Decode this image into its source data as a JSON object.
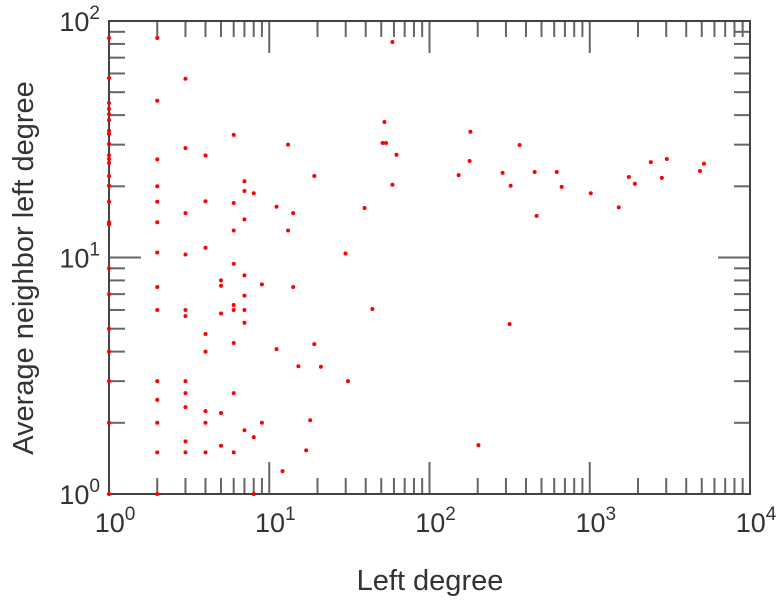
{
  "chart_data": {
    "type": "scatter",
    "title": "",
    "xlabel": "Left degree",
    "ylabel": "Average neighbor left degree",
    "xscale": "log",
    "yscale": "log",
    "xlim": [
      1,
      10000
    ],
    "ylim": [
      1,
      100
    ],
    "grid": false,
    "legend": "none",
    "point_color": "#ff0000",
    "x_ticks": [
      {
        "base": "10",
        "exp": "0",
        "value": 1
      },
      {
        "base": "10",
        "exp": "1",
        "value": 10
      },
      {
        "base": "10",
        "exp": "2",
        "value": 100
      },
      {
        "base": "10",
        "exp": "3",
        "value": 1000
      },
      {
        "base": "10",
        "exp": "4",
        "value": 10000
      }
    ],
    "y_ticks": [
      {
        "base": "10",
        "exp": "0",
        "value": 1
      },
      {
        "base": "10",
        "exp": "1",
        "value": 10
      },
      {
        "base": "10",
        "exp": "2",
        "value": 100
      }
    ],
    "points": [
      [
        1,
        84.7
      ],
      [
        1,
        57.4
      ],
      [
        1,
        45
      ],
      [
        1,
        42.5
      ],
      [
        1,
        40.4
      ],
      [
        1,
        38.1
      ],
      [
        1,
        34.3
      ],
      [
        1,
        33.3
      ],
      [
        1,
        30.2
      ],
      [
        1,
        27.1
      ],
      [
        1,
        26.1
      ],
      [
        1,
        25.1
      ],
      [
        1,
        22.1
      ],
      [
        1,
        20.1
      ],
      [
        1,
        17.2
      ],
      [
        1,
        14.1
      ],
      [
        1,
        13.8
      ],
      [
        1,
        9.0
      ],
      [
        1,
        7.0
      ],
      [
        1,
        5.0
      ],
      [
        1,
        4.0
      ],
      [
        1,
        3.0
      ],
      [
        1,
        2.0
      ],
      [
        1,
        1.0
      ],
      [
        2,
        84.7
      ],
      [
        2,
        46
      ],
      [
        2,
        26
      ],
      [
        2,
        20
      ],
      [
        2,
        17.2
      ],
      [
        2,
        14.1
      ],
      [
        2,
        10.5
      ],
      [
        2,
        7.5
      ],
      [
        2,
        6.0
      ],
      [
        2,
        3.0
      ],
      [
        2,
        2.5
      ],
      [
        2,
        2.0
      ],
      [
        2,
        1.5
      ],
      [
        2,
        1.0
      ],
      [
        3,
        57
      ],
      [
        3,
        29
      ],
      [
        3,
        15.4
      ],
      [
        3,
        10.3
      ],
      [
        3,
        6.0
      ],
      [
        3,
        5.65
      ],
      [
        3,
        3.0
      ],
      [
        3,
        2.67
      ],
      [
        3,
        2.33
      ],
      [
        3,
        1.67
      ],
      [
        3,
        1.5
      ],
      [
        4,
        27
      ],
      [
        4,
        17.3
      ],
      [
        4,
        11
      ],
      [
        4,
        4.75
      ],
      [
        4,
        4.0
      ],
      [
        4,
        2.24
      ],
      [
        4,
        2.0
      ],
      [
        4,
        1.5
      ],
      [
        5,
        8.0
      ],
      [
        5,
        7.6
      ],
      [
        5,
        5.8
      ],
      [
        5,
        2.2
      ],
      [
        5,
        1.6
      ],
      [
        6,
        33
      ],
      [
        6,
        17
      ],
      [
        6,
        13
      ],
      [
        6,
        9.4
      ],
      [
        6,
        6.3
      ],
      [
        6,
        6.0
      ],
      [
        6,
        4.35
      ],
      [
        6,
        2.67
      ],
      [
        6,
        1.5
      ],
      [
        7,
        21
      ],
      [
        7,
        19.1
      ],
      [
        7,
        14.5
      ],
      [
        7,
        8.4
      ],
      [
        7,
        6.9
      ],
      [
        7,
        6.0
      ],
      [
        7,
        5.3
      ],
      [
        7,
        1.86
      ],
      [
        8,
        18.7
      ],
      [
        8,
        1.74
      ],
      [
        8,
        1.0
      ],
      [
        9,
        7.7
      ],
      [
        9,
        2.0
      ],
      [
        11.1,
        16.4
      ],
      [
        11.1,
        4.1
      ],
      [
        12.1,
        1.25
      ],
      [
        13.1,
        30
      ],
      [
        13.1,
        13
      ],
      [
        14.1,
        15.4
      ],
      [
        14.1,
        7.5
      ],
      [
        15.2,
        3.47
      ],
      [
        17,
        1.53
      ],
      [
        18,
        2.05
      ],
      [
        19.1,
        22.1
      ],
      [
        19.1,
        4.3
      ],
      [
        21,
        3.45
      ],
      [
        29.9,
        10.4
      ],
      [
        31,
        3.0
      ],
      [
        39.3,
        16.2
      ],
      [
        44,
        6.06
      ],
      [
        52.3,
        37.4
      ],
      [
        51,
        30.5
      ],
      [
        53.5,
        30.5
      ],
      [
        58.7,
        81.5
      ],
      [
        58.7,
        20.3
      ],
      [
        62.2,
        27.2
      ],
      [
        152,
        22.3
      ],
      [
        178,
        25.6
      ],
      [
        180,
        34
      ],
      [
        202,
        1.61
      ],
      [
        286,
        22.8
      ],
      [
        316,
        5.23
      ],
      [
        321,
        20.1
      ],
      [
        365,
        29.9
      ],
      [
        453,
        23
      ],
      [
        466,
        15
      ],
      [
        622,
        23
      ],
      [
        668,
        19.9
      ],
      [
        1014,
        18.7
      ],
      [
        1517,
        16.3
      ],
      [
        1754,
        21.9
      ],
      [
        1911,
        20.5
      ],
      [
        2405,
        25.3
      ],
      [
        2818,
        21.7
      ],
      [
        3028,
        26.1
      ],
      [
        4872,
        23.2
      ],
      [
        5160,
        24.9
      ]
    ]
  }
}
